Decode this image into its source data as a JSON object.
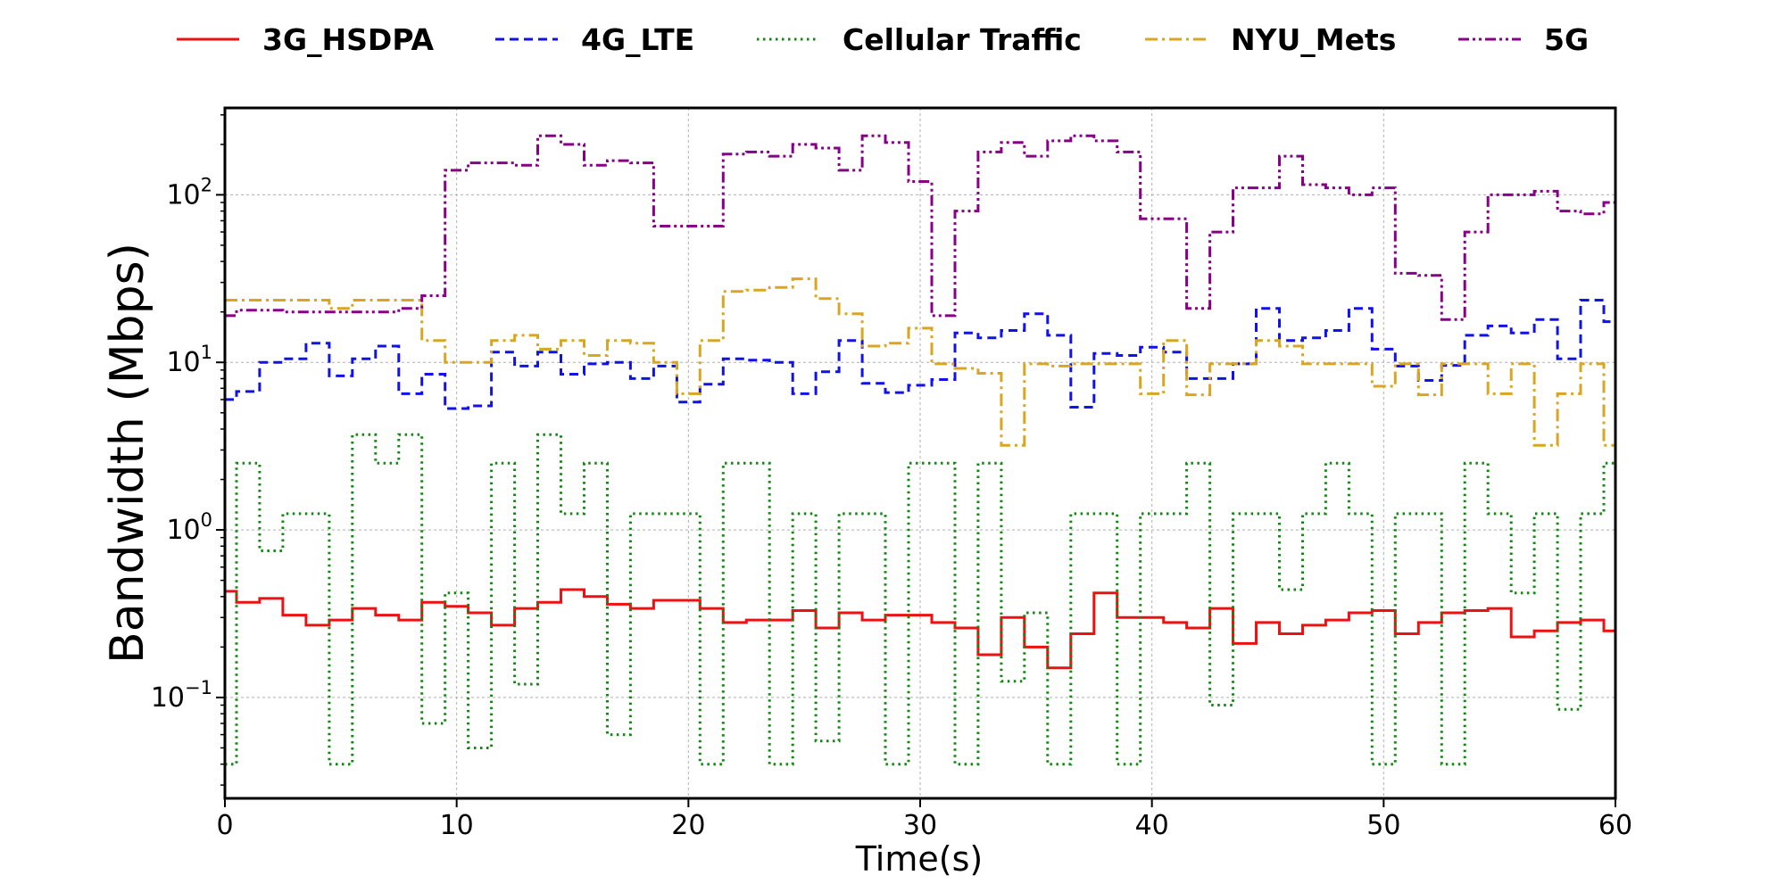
{
  "chart_data": {
    "type": "line",
    "xlabel": "Time(s)",
    "ylabel": "Bandwidth (Mbps)",
    "xlim": [
      0,
      60
    ],
    "ylim": [
      0.025,
      330
    ],
    "yscale": "log",
    "grid": true,
    "legend_position": "top",
    "x_ticks": [
      "0",
      "10",
      "20",
      "30",
      "40",
      "50",
      "60"
    ],
    "y_ticks": [
      {
        "value": 0.1,
        "base": "10",
        "exp": "−1"
      },
      {
        "value": 1,
        "base": "10",
        "exp": "0"
      },
      {
        "value": 10,
        "base": "10",
        "exp": "1"
      },
      {
        "value": 100,
        "base": "10",
        "exp": "2"
      }
    ],
    "series": [
      {
        "name": "3G_HSDPA",
        "color": "#ee1111",
        "style": "solid",
        "x": [
          0,
          0.5,
          1.5,
          2.5,
          3.5,
          4.5,
          5.5,
          6.5,
          7.5,
          8.5,
          9.5,
          10.5,
          11.5,
          12.5,
          13.5,
          14.5,
          15.5,
          16.5,
          17.5,
          18.5,
          19.5,
          20.5,
          21.5,
          22.5,
          23.5,
          24.5,
          25.5,
          26.5,
          27.5,
          28.5,
          29.5,
          30.5,
          31.5,
          32.5,
          33.5,
          34.5,
          35.5,
          36.5,
          37.5,
          38.5,
          39.5,
          40.5,
          41.5,
          42.5,
          43.5,
          44.5,
          45.5,
          46.5,
          47.5,
          48.5,
          49.5,
          50.5,
          51.5,
          52.5,
          53.5,
          54.5,
          55.5,
          56.5,
          57.5,
          58.5,
          59.5,
          60
        ],
        "y": [
          0.43,
          0.37,
          0.39,
          0.31,
          0.27,
          0.29,
          0.34,
          0.31,
          0.29,
          0.37,
          0.35,
          0.32,
          0.27,
          0.34,
          0.37,
          0.44,
          0.4,
          0.36,
          0.34,
          0.38,
          0.38,
          0.34,
          0.28,
          0.29,
          0.29,
          0.33,
          0.26,
          0.32,
          0.29,
          0.31,
          0.31,
          0.28,
          0.26,
          0.18,
          0.3,
          0.2,
          0.15,
          0.24,
          0.42,
          0.3,
          0.3,
          0.28,
          0.26,
          0.34,
          0.21,
          0.28,
          0.24,
          0.27,
          0.29,
          0.32,
          0.33,
          0.24,
          0.28,
          0.32,
          0.33,
          0.34,
          0.23,
          0.25,
          0.28,
          0.29,
          0.25,
          0.25
        ]
      },
      {
        "name": "4G_LTE",
        "color": "#1111ee",
        "style": "dashed",
        "x": [
          0,
          0.5,
          1.5,
          2.5,
          3.5,
          4.5,
          5.5,
          6.5,
          7.5,
          8.5,
          9.5,
          10.5,
          11.5,
          12.5,
          13.5,
          14.5,
          15.5,
          16.5,
          17.5,
          18.5,
          19.5,
          20.5,
          21.5,
          22.5,
          23.5,
          24.5,
          25.5,
          26.5,
          27.5,
          28.5,
          29.5,
          30.5,
          31.5,
          32.5,
          33.5,
          34.5,
          35.5,
          36.5,
          37.5,
          38.5,
          39.5,
          40.5,
          41.5,
          42.5,
          43.5,
          44.5,
          45.5,
          46.5,
          47.5,
          48.5,
          49.5,
          50.5,
          51.5,
          52.5,
          53.5,
          54.5,
          55.5,
          56.5,
          57.5,
          58.5,
          59.5,
          60
        ],
        "y": [
          6,
          6.7,
          10,
          10.5,
          13,
          8.3,
          10.5,
          12.5,
          6.5,
          8.5,
          5.3,
          5.5,
          11.5,
          9.5,
          11.5,
          8.5,
          9.8,
          10,
          8,
          9.5,
          5.8,
          7.4,
          10.5,
          10.3,
          10,
          6.5,
          8.8,
          13.5,
          7.5,
          6.6,
          7.3,
          7.9,
          15,
          14,
          15.5,
          19.5,
          14.5,
          5.4,
          11.3,
          11,
          12.3,
          11.5,
          8,
          8,
          9.8,
          21,
          13.5,
          14,
          15.5,
          21,
          12,
          9.5,
          7.8,
          9.6,
          14.5,
          16.5,
          15,
          18,
          10.5,
          23.5,
          17.5,
          17.5
        ]
      },
      {
        "name": "Cellular Traffic",
        "color": "#118811",
        "style": "dotted",
        "x": [
          0,
          0.5,
          1.5,
          2.5,
          3.5,
          4.5,
          5.5,
          6.5,
          7.5,
          8.5,
          9.5,
          10.5,
          11.5,
          12.5,
          13.5,
          14.5,
          15.5,
          16.5,
          17.5,
          18.5,
          19.5,
          20.5,
          21.5,
          22.5,
          23.5,
          24.5,
          25.5,
          26.5,
          27.5,
          28.5,
          29.5,
          30.5,
          31.5,
          32.5,
          33.5,
          34.5,
          35.5,
          36.5,
          37.5,
          38.5,
          39.5,
          40.5,
          41.5,
          42.5,
          43.5,
          44.5,
          45.5,
          46.5,
          47.5,
          48.5,
          49.5,
          50.5,
          51.5,
          52.5,
          53.5,
          54.5,
          55.5,
          56.5,
          57.5,
          58.5,
          59.5,
          60
        ],
        "y": [
          0.04,
          2.5,
          0.75,
          1.25,
          1.25,
          0.04,
          3.7,
          2.5,
          3.7,
          0.07,
          0.42,
          0.05,
          2.5,
          0.12,
          3.7,
          1.25,
          2.5,
          0.06,
          1.25,
          1.25,
          1.25,
          0.04,
          2.5,
          2.5,
          0.04,
          1.25,
          0.055,
          1.25,
          1.25,
          0.04,
          2.5,
          2.5,
          0.04,
          2.5,
          0.125,
          0.32,
          0.04,
          1.25,
          1.25,
          0.04,
          1.25,
          1.25,
          2.5,
          0.09,
          1.25,
          1.25,
          0.44,
          1.25,
          2.5,
          1.25,
          0.04,
          1.25,
          1.25,
          0.04,
          2.5,
          1.25,
          0.42,
          1.25,
          0.085,
          1.25,
          2.5,
          2.5
        ]
      },
      {
        "name": "NYU_Mets",
        "color": "#daa520",
        "style": "dashdot",
        "x": [
          0,
          0.5,
          1.5,
          2.5,
          3.5,
          4.5,
          5.5,
          6.5,
          7.5,
          8.5,
          9.5,
          10.5,
          11.5,
          12.5,
          13.5,
          14.5,
          15.5,
          16.5,
          17.5,
          18.5,
          19.5,
          20.5,
          21.5,
          22.5,
          23.5,
          24.5,
          25.5,
          26.5,
          27.5,
          28.5,
          29.5,
          30.5,
          31.5,
          32.5,
          33.5,
          34.5,
          35.5,
          36.5,
          37.5,
          38.5,
          39.5,
          40.5,
          41.5,
          42.5,
          43.5,
          44.5,
          45.5,
          46.5,
          47.5,
          48.5,
          49.5,
          50.5,
          51.5,
          52.5,
          53.5,
          54.5,
          55.5,
          56.5,
          57.5,
          58.5,
          59.5,
          60
        ],
        "y": [
          23.5,
          23.5,
          23.5,
          23.5,
          23.5,
          21,
          23.5,
          23.5,
          23.5,
          13.5,
          10,
          10,
          13.5,
          14.5,
          12,
          13.5,
          11,
          13.5,
          13,
          10,
          6.5,
          13.5,
          26.5,
          27,
          28,
          31.5,
          24,
          19.5,
          12.5,
          13,
          16,
          9.8,
          9.2,
          8.6,
          3.2,
          9.8,
          9.5,
          9.8,
          9.8,
          9.8,
          6.5,
          13.5,
          6.4,
          9.8,
          9.8,
          13.5,
          12.5,
          9.8,
          9.8,
          9.8,
          7.2,
          9.8,
          6.4,
          9.8,
          9.8,
          6.5,
          9.8,
          3.2,
          6.5,
          9.8,
          3.2,
          3.2
        ]
      },
      {
        "name": "5G",
        "color": "#880088",
        "style": "dashdotdot",
        "x": [
          0,
          0.5,
          1.5,
          2.5,
          3.5,
          4.5,
          5.5,
          6.5,
          7.5,
          8.5,
          9.5,
          10.5,
          11.5,
          12.5,
          13.5,
          14.5,
          15.5,
          16.5,
          17.5,
          18.5,
          19.5,
          20.5,
          21.5,
          22.5,
          23.5,
          24.5,
          25.5,
          26.5,
          27.5,
          28.5,
          29.5,
          30.5,
          31.5,
          32.5,
          33.5,
          34.5,
          35.5,
          36.5,
          37.5,
          38.5,
          39.5,
          40.5,
          41.5,
          42.5,
          43.5,
          44.5,
          45.5,
          46.5,
          47.5,
          48.5,
          49.5,
          50.5,
          51.5,
          52.5,
          53.5,
          54.5,
          55.5,
          56.5,
          57.5,
          58.5,
          59.5,
          60
        ],
        "y": [
          19,
          20.5,
          20.5,
          20,
          20,
          20,
          20,
          20,
          21,
          25,
          140,
          155,
          155,
          150,
          225,
          200,
          150,
          160,
          155,
          65,
          65,
          65,
          175,
          180,
          170,
          200,
          190,
          140,
          225,
          205,
          120,
          19,
          80,
          180,
          205,
          170,
          210,
          225,
          210,
          180,
          72,
          72,
          21,
          60,
          110,
          110,
          170,
          115,
          110,
          100,
          110,
          34,
          33,
          18,
          60,
          100,
          100,
          105,
          80,
          77,
          90,
          90
        ]
      }
    ]
  }
}
